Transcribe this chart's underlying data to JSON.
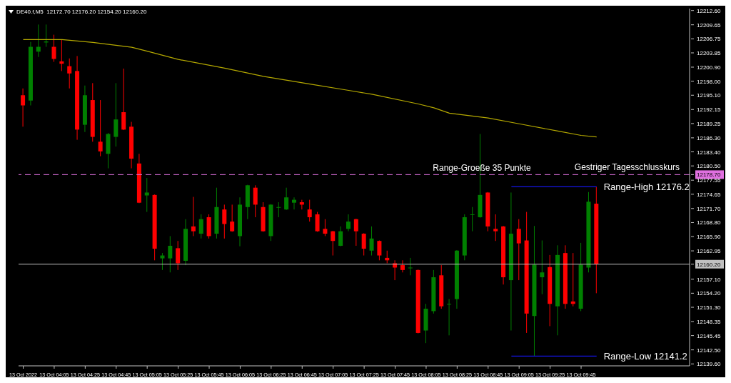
{
  "chart_data": {
    "type": "candlestick",
    "title": "DE40.f,M5  12172.70 12176.20 12154.20 12160.20",
    "x": [
      "2022-10-13T03:45",
      "2022-10-13T03:50",
      "2022-10-13T03:55",
      "2022-10-13T04:00",
      "2022-10-13T04:05",
      "2022-10-13T04:10",
      "2022-10-13T04:15",
      "2022-10-13T04:20",
      "2022-10-13T04:25",
      "2022-10-13T04:30",
      "2022-10-13T04:35",
      "2022-10-13T04:40",
      "2022-10-13T04:45",
      "2022-10-13T04:50",
      "2022-10-13T04:55",
      "2022-10-13T05:00",
      "2022-10-13T05:05",
      "2022-10-13T05:10",
      "2022-10-13T05:15",
      "2022-10-13T05:20",
      "2022-10-13T05:25",
      "2022-10-13T05:30",
      "2022-10-13T05:35",
      "2022-10-13T05:40",
      "2022-10-13T05:45",
      "2022-10-13T05:50",
      "2022-10-13T05:55",
      "2022-10-13T06:00",
      "2022-10-13T06:05",
      "2022-10-13T06:10",
      "2022-10-13T06:15",
      "2022-10-13T06:20",
      "2022-10-13T06:25",
      "2022-10-13T06:30",
      "2022-10-13T06:35",
      "2022-10-13T06:40",
      "2022-10-13T06:45",
      "2022-10-13T06:50",
      "2022-10-13T06:55",
      "2022-10-13T07:00",
      "2022-10-13T07:05",
      "2022-10-13T07:10",
      "2022-10-13T07:15",
      "2022-10-13T07:20",
      "2022-10-13T07:25",
      "2022-10-13T07:30",
      "2022-10-13T07:35",
      "2022-10-13T07:40",
      "2022-10-13T07:45",
      "2022-10-13T07:50",
      "2022-10-13T07:55",
      "2022-10-13T08:00",
      "2022-10-13T08:05",
      "2022-10-13T08:10",
      "2022-10-13T08:15",
      "2022-10-13T08:20",
      "2022-10-13T08:25",
      "2022-10-13T08:30",
      "2022-10-13T08:35",
      "2022-10-13T08:40",
      "2022-10-13T08:45",
      "2022-10-13T08:50",
      "2022-10-13T08:55",
      "2022-10-13T09:00",
      "2022-10-13T09:05",
      "2022-10-13T09:10",
      "2022-10-13T09:15",
      "2022-10-13T09:20",
      "2022-10-13T09:25",
      "2022-10-13T09:30",
      "2022-10-13T09:35",
      "2022-10-13T09:40",
      "2022-10-13T09:45",
      "2022-10-13T09:50",
      "2022-10-13T09:55"
    ],
    "ohlc": [
      [
        12195.1,
        12196.5,
        12188.6,
        12193.0
      ],
      [
        12194.0,
        12206.1,
        12193.0,
        12205.1
      ],
      [
        12204.1,
        12209.7,
        12203.0,
        12205.1
      ],
      [
        12206.0,
        12209.7,
        12205.1,
        12206.2
      ],
      [
        12205.1,
        12207.6,
        12202.0,
        12202.6
      ],
      [
        12202.1,
        12206.6,
        12200.1,
        12201.6
      ],
      [
        12201.1,
        12202.7,
        12196.5,
        12199.6
      ],
      [
        12200.1,
        12203.2,
        12185.9,
        12188.0
      ],
      [
        12189.0,
        12197.1,
        12187.5,
        12195.1
      ],
      [
        12194.1,
        12197.6,
        12185.5,
        12186.5
      ],
      [
        12185.5,
        12194.1,
        12182.5,
        12183.5
      ],
      [
        12183.0,
        12187.3,
        12180.0,
        12187.1
      ],
      [
        12186.5,
        12197.6,
        12184.5,
        12190.1
      ],
      [
        12191.6,
        12200.6,
        12187.9,
        12188.0
      ],
      [
        12188.6,
        12189.6,
        12180.0,
        12182.0
      ],
      [
        12181.0,
        12183.0,
        12172.8,
        12172.9
      ],
      [
        12174.4,
        12178.0,
        12171.0,
        12175.0
      ],
      [
        12174.5,
        12174.6,
        12161.0,
        12163.4
      ],
      [
        12161.4,
        12162.5,
        12159.0,
        12162.0
      ],
      [
        12161.4,
        12166.0,
        12158.5,
        12164.0
      ],
      [
        12163.5,
        12165.0,
        12159.0,
        12160.4
      ],
      [
        12160.9,
        12169.5,
        12160.0,
        12167.5
      ],
      [
        12168.0,
        12174.1,
        12166.0,
        12167.0
      ],
      [
        12166.5,
        12170.5,
        12165.5,
        12169.5
      ],
      [
        12169.9,
        12170.5,
        12165.5,
        12166.0
      ],
      [
        12166.5,
        12176.0,
        12165.5,
        12172.0
      ],
      [
        12171.5,
        12172.5,
        12165.5,
        12168.5
      ],
      [
        12169.0,
        12172.5,
        12166.9,
        12167.0
      ],
      [
        12166.0,
        12174.0,
        12163.9,
        12172.5
      ],
      [
        12172.0,
        12176.6,
        12169.5,
        12176.5
      ],
      [
        12176.0,
        12176.5,
        12169.9,
        12172.5
      ],
      [
        12172.0,
        12173.0,
        12166.9,
        12167.0
      ],
      [
        12166.0,
        12172.6,
        12165.0,
        12172.5
      ],
      [
        12171.9,
        12173.0,
        12169.9,
        12172.0
      ],
      [
        12171.5,
        12176.0,
        12171.4,
        12174.0
      ],
      [
        12172.9,
        12174.0,
        12171.5,
        12173.5
      ],
      [
        12173.0,
        12173.5,
        12171.5,
        12172.5
      ],
      [
        12171.5,
        12173.5,
        12169.0,
        12169.9
      ],
      [
        12170.5,
        12171.0,
        12166.9,
        12167.0
      ],
      [
        12167.5,
        12169.5,
        12166.0,
        12166.5
      ],
      [
        12167.0,
        12167.1,
        12162.0,
        12165.0
      ],
      [
        12164.0,
        12168.0,
        12163.9,
        12167.0
      ],
      [
        12167.5,
        12170.5,
        12167.0,
        12169.0
      ],
      [
        12169.5,
        12169.6,
        12164.0,
        12167.0
      ],
      [
        12166.5,
        12166.6,
        12162.0,
        12163.4
      ],
      [
        12163.0,
        12168.0,
        12162.0,
        12165.5
      ],
      [
        12165.0,
        12165.1,
        12161.0,
        12162.0
      ],
      [
        12161.5,
        12163.0,
        12160.4,
        12161.0
      ],
      [
        12160.4,
        12161.0,
        12156.9,
        12159.5
      ],
      [
        12160.0,
        12161.0,
        12158.5,
        12159.0
      ],
      [
        12159.4,
        12161.5,
        12157.9,
        12159.5
      ],
      [
        12159.0,
        12159.1,
        12145.9,
        12146.0
      ],
      [
        12146.5,
        12152.0,
        12143.9,
        12151.0
      ],
      [
        12150.5,
        12159.0,
        12150.0,
        12157.5
      ],
      [
        12157.9,
        12160.0,
        12151.0,
        12151.5
      ],
      [
        12151.9,
        12153.0,
        12145.5,
        12152.0
      ],
      [
        12153.0,
        12163.1,
        12151.0,
        12163.0
      ],
      [
        12162.0,
        12170.5,
        12161.0,
        12169.9
      ],
      [
        12170.4,
        12172.0,
        12167.0,
        12170.5
      ],
      [
        12169.9,
        12187.1,
        12169.8,
        12174.5
      ],
      [
        12175.0,
        12175.1,
        12167.0,
        12168.0
      ],
      [
        12167.5,
        12170.5,
        12165.0,
        12167.0
      ],
      [
        12168.0,
        12168.1,
        12156.0,
        12157.5
      ],
      [
        12156.9,
        12175.0,
        12146.5,
        12166.5
      ],
      [
        12167.5,
        12169.5,
        12156.9,
        12164.5
      ],
      [
        12165.1,
        12171.0,
        12146.0,
        12150.0
      ],
      [
        12149.5,
        12168.1,
        12141.2,
        12160.1
      ],
      [
        12157.5,
        12165.1,
        12154.0,
        12158.5
      ],
      [
        12159.6,
        12162.1,
        12147.4,
        12152.0
      ],
      [
        12151.5,
        12164.1,
        12145.5,
        12162.1
      ],
      [
        12162.5,
        12164.1,
        12151.0,
        12152.0
      ],
      [
        12152.5,
        12162.5,
        12151.5,
        12152.0
      ],
      [
        12151.0,
        12164.6,
        12150.5,
        12160.1
      ],
      [
        12159.5,
        12175.1,
        12158.5,
        12173.1
      ],
      [
        12172.7,
        12176.2,
        12154.2,
        12160.2
      ]
    ],
    "colors": [
      "#ff0000",
      "#008000",
      "#008000",
      "#008000",
      "#ff0000",
      "#ff0000",
      "#ff0000",
      "#ff0000",
      "#008000",
      "#ff0000",
      "#ff0000",
      "#008000",
      "#008000",
      "#ff0000",
      "#ff0000",
      "#ff0000",
      "#008000",
      "#ff0000",
      "#008000",
      "#008000",
      "#ff0000",
      "#008000",
      "#ff0000",
      "#008000",
      "#ff0000",
      "#008000",
      "#ff0000",
      "#ff0000",
      "#008000",
      "#008000",
      "#ff0000",
      "#ff0000",
      "#008000",
      "#008000",
      "#008000",
      "#008000",
      "#ff0000",
      "#ff0000",
      "#ff0000",
      "#ff0000",
      "#ff0000",
      "#008000",
      "#008000",
      "#ff0000",
      "#ff0000",
      "#008000",
      "#ff0000",
      "#ff0000",
      "#ff0000",
      "#ff0000",
      "#008000",
      "#ff0000",
      "#008000",
      "#008000",
      "#ff0000",
      "#008000",
      "#008000",
      "#008000",
      "#008000",
      "#008000",
      "#ff0000",
      "#ff0000",
      "#ff0000",
      "#008000",
      "#ff0000",
      "#ff0000",
      "#008000",
      "#008000",
      "#ff0000",
      "#008000",
      "#ff0000",
      "#ff0000",
      "#008000",
      "#008000",
      "#ff0000"
    ],
    "series": [
      {
        "type": "line",
        "color": "#b4a800",
        "x": [
          "2022-10-13T03:45",
          "2022-10-13T04:10",
          "2022-10-13T04:30",
          "2022-10-13T04:55",
          "2022-10-13T05:05",
          "2022-10-13T05:25",
          "2022-10-13T05:55",
          "2022-10-13T06:20",
          "2022-10-13T06:50",
          "2022-10-13T07:15",
          "2022-10-13T07:30",
          "2022-10-13T08:00",
          "2022-10-13T08:10",
          "2022-10-13T08:20",
          "2022-10-13T08:45",
          "2022-10-13T09:05",
          "2022-10-13T09:30",
          "2022-10-13T09:45",
          "2022-10-13T09:55"
        ],
        "values": [
          12206.6,
          12206.6,
          12206.0,
          12205.0,
          12204.2,
          12202.5,
          12200.7,
          12199.0,
          12197.4,
          12196.1,
          12195.3,
          12193.3,
          12192.5,
          12191.4,
          12190.4,
          12189.2,
          12187.7,
          12186.8,
          12186.5
        ]
      },
      {
        "type": "line",
        "color": "#1414e6",
        "x": [
          "2022-10-13T09:00",
          "2022-10-13T09:55"
        ],
        "values": [
          12176.2,
          12176.2
        ]
      },
      {
        "type": "line",
        "color": "#1414e6",
        "x": [
          "2022-10-13T09:00",
          "2022-10-13T09:55"
        ],
        "values": [
          12141.2,
          12141.2
        ]
      }
    ],
    "xlim": [
      "2022-10-13T03:42",
      "2022-10-13T10:55"
    ],
    "xticks": [
      {
        "value": "2022-10-13T03:45",
        "label": "13 Oct 2022"
      },
      {
        "value": "2022-10-13T04:05",
        "label": "13 Oct 04:05"
      },
      {
        "value": "2022-10-13T04:25",
        "label": "13 Oct 04:25"
      },
      {
        "value": "2022-10-13T04:45",
        "label": "13 Oct 04:45"
      },
      {
        "value": "2022-10-13T05:05",
        "label": "13 Oct 05:05"
      },
      {
        "value": "2022-10-13T05:25",
        "label": "13 Oct 05:25"
      },
      {
        "value": "2022-10-13T05:45",
        "label": "13 Oct 05:45"
      },
      {
        "value": "2022-10-13T06:05",
        "label": "13 Oct 06:05"
      },
      {
        "value": "2022-10-13T06:25",
        "label": "13 Oct 06:25"
      },
      {
        "value": "2022-10-13T06:45",
        "label": "13 Oct 06:45"
      },
      {
        "value": "2022-10-13T07:05",
        "label": "13 Oct 07:05"
      },
      {
        "value": "2022-10-13T07:25",
        "label": "13 Oct 07:25"
      },
      {
        "value": "2022-10-13T07:45",
        "label": "13 Oct 07:45"
      },
      {
        "value": "2022-10-13T08:05",
        "label": "13 Oct 08:05"
      },
      {
        "value": "2022-10-13T08:25",
        "label": "13 Oct 08:25"
      },
      {
        "value": "2022-10-13T08:45",
        "label": "13 Oct 08:45"
      },
      {
        "value": "2022-10-13T09:05",
        "label": "13 Oct 09:05"
      },
      {
        "value": "2022-10-13T09:25",
        "label": "13 Oct 09:25"
      },
      {
        "value": "2022-10-13T09:45",
        "label": "13 Oct 09:45"
      }
    ],
    "ylim": [
      12139.2,
      12213.0
    ],
    "yticks": [
      {
        "value": 12212.6,
        "label": "12212.60"
      },
      {
        "value": 12209.65,
        "label": "12209.65"
      },
      {
        "value": 12206.75,
        "label": "12206.75"
      },
      {
        "value": 12203.85,
        "label": "12203.85"
      },
      {
        "value": 12200.9,
        "label": "12200.90"
      },
      {
        "value": 12198.0,
        "label": "12198.00"
      },
      {
        "value": 12195.1,
        "label": "12195.10"
      },
      {
        "value": 12192.15,
        "label": "12192.15"
      },
      {
        "value": 12189.25,
        "label": "12189.25"
      },
      {
        "value": 12186.3,
        "label": "12186.30"
      },
      {
        "value": 12183.4,
        "label": "12183.40"
      },
      {
        "value": 12180.5,
        "label": "12180.50"
      },
      {
        "value": 12178.7,
        "label": "12178.70"
      },
      {
        "value": 12177.55,
        "label": "12177.55"
      },
      {
        "value": 12174.65,
        "label": "12174.65"
      },
      {
        "value": 12171.7,
        "label": "12171.70"
      },
      {
        "value": 12168.8,
        "label": "12168.80"
      },
      {
        "value": 12165.9,
        "label": "12165.90"
      },
      {
        "value": 12162.95,
        "label": "12162.95"
      },
      {
        "value": 12160.2,
        "label": "12160.20"
      },
      {
        "value": 12157.1,
        "label": "12157.10"
      },
      {
        "value": 12154.2,
        "label": "12154.20"
      },
      {
        "value": 12151.3,
        "label": "12151.30"
      },
      {
        "value": 12148.35,
        "label": "12148.35"
      },
      {
        "value": 12145.45,
        "label": "12145.45"
      },
      {
        "value": 12142.5,
        "label": "12142.50"
      },
      {
        "value": 12139.6,
        "label": "12139.60"
      }
    ],
    "ref_lines": [
      {
        "axis": "y",
        "value": 12178.7,
        "label": "Gestriger Tagesschlusskurs",
        "color": "#e070e0",
        "line_style": "dashed"
      },
      {
        "axis": "y",
        "value": 12160.2,
        "color": "#c0c0c0",
        "line_style": "solid"
      }
    ],
    "annotations": [
      "Range-Groeße 35 Punkte",
      {
        "text": "Range-High 12176.2",
        "x": "2022-10-13T09:55",
        "y": 12176.2
      },
      {
        "text": "Range-Low 12141.2",
        "x": "2022-10-13T09:55",
        "y": 12141.2
      }
    ],
    "marker": "none",
    "line_style": "solid"
  }
}
